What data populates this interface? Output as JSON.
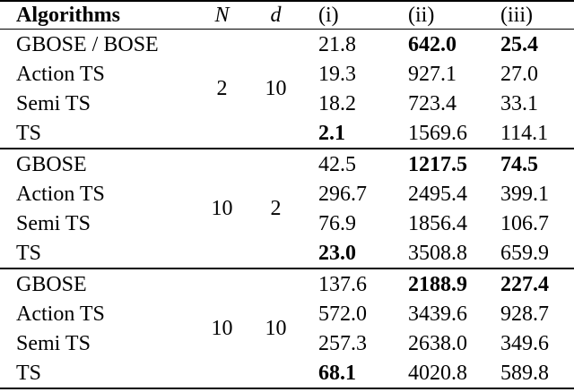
{
  "table": {
    "header": [
      "Algorithms",
      "N",
      "d",
      "(i)",
      "(ii)",
      "(iii)"
    ],
    "groups": [
      {
        "N": "2",
        "d": "10",
        "rows": [
          {
            "algorithm": "GBOSE / BOSE",
            "values": [
              "21.8",
              "642.0",
              "25.4"
            ],
            "bold": [
              false,
              true,
              true
            ]
          },
          {
            "algorithm": "Action TS",
            "values": [
              "19.3",
              "927.1",
              "27.0"
            ],
            "bold": [
              false,
              false,
              false
            ]
          },
          {
            "algorithm": "Semi TS",
            "values": [
              "18.2",
              "723.4",
              "33.1"
            ],
            "bold": [
              false,
              false,
              false
            ]
          },
          {
            "algorithm": "TS",
            "values": [
              "2.1",
              "1569.6",
              "114.1"
            ],
            "bold": [
              true,
              false,
              false
            ]
          }
        ]
      },
      {
        "N": "10",
        "d": "2",
        "rows": [
          {
            "algorithm": "GBOSE",
            "values": [
              "42.5",
              "1217.5",
              "74.5"
            ],
            "bold": [
              false,
              true,
              true
            ]
          },
          {
            "algorithm": "Action TS",
            "values": [
              "296.7",
              "2495.4",
              "399.1"
            ],
            "bold": [
              false,
              false,
              false
            ]
          },
          {
            "algorithm": "Semi TS",
            "values": [
              "76.9",
              "1856.4",
              "106.7"
            ],
            "bold": [
              false,
              false,
              false
            ]
          },
          {
            "algorithm": "TS",
            "values": [
              "23.0",
              "3508.8",
              "659.9"
            ],
            "bold": [
              true,
              false,
              false
            ]
          }
        ]
      },
      {
        "N": "10",
        "d": "10",
        "rows": [
          {
            "algorithm": "GBOSE",
            "values": [
              "137.6",
              "2188.9",
              "227.4"
            ],
            "bold": [
              false,
              true,
              true
            ]
          },
          {
            "algorithm": "Action TS",
            "values": [
              "572.0",
              "3439.6",
              "928.7"
            ],
            "bold": [
              false,
              false,
              false
            ]
          },
          {
            "algorithm": "Semi TS",
            "values": [
              "257.3",
              "2638.0",
              "349.6"
            ],
            "bold": [
              false,
              false,
              false
            ]
          },
          {
            "algorithm": "TS",
            "values": [
              "68.1",
              "4020.8",
              "589.8"
            ],
            "bold": [
              true,
              false,
              false
            ]
          }
        ]
      }
    ]
  }
}
